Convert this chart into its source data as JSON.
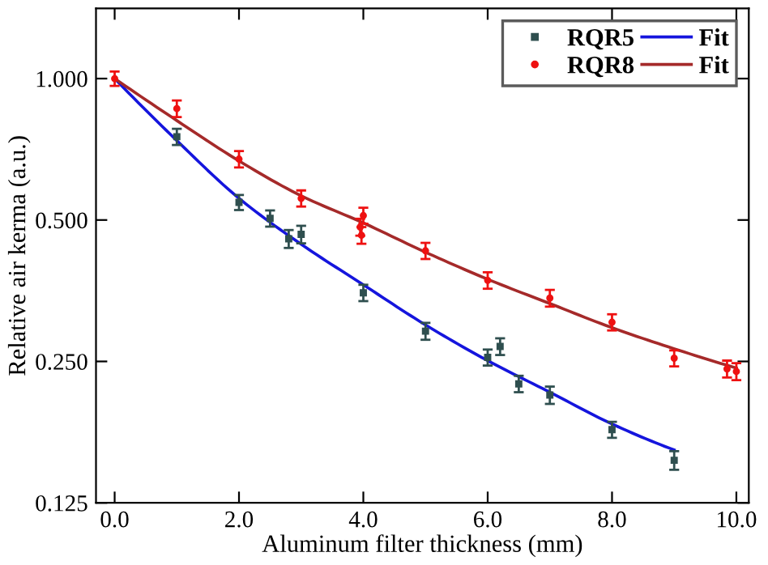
{
  "chart_data": {
    "type": "scatter",
    "xlabel": "Aluminum filter thickness (mm)",
    "ylabel": "Relative air kerma (a.u.)",
    "log": "y",
    "xlim": [
      -0.3,
      10.2
    ],
    "ylim": [
      0.125,
      1.41
    ],
    "xticks": [
      {
        "value": 0,
        "label": "0.0"
      },
      {
        "value": 2,
        "label": "2.0"
      },
      {
        "value": 4,
        "label": "4.0"
      },
      {
        "value": 6,
        "label": "6.0"
      },
      {
        "value": 8,
        "label": "8.0"
      },
      {
        "value": 10,
        "label": "10.0"
      }
    ],
    "yticks": [
      {
        "value": 0.125,
        "label": "0.125"
      },
      {
        "value": 0.25,
        "label": "0.250"
      },
      {
        "value": 0.5,
        "label": "0.500"
      },
      {
        "value": 1,
        "label": "1.000"
      }
    ],
    "grid": false,
    "legend": "top right",
    "series": [
      {
        "name": "RQR5",
        "marker": "square",
        "color": "#2f4f4f",
        "x": [
          1,
          2,
          2.5,
          2.8,
          3,
          4,
          5,
          6,
          6.2,
          6.5,
          7,
          8,
          9
        ],
        "values": [
          0.752,
          0.545,
          0.504,
          0.456,
          0.466,
          0.35,
          0.29,
          0.255,
          0.269,
          0.224,
          0.212,
          0.179,
          0.154
        ],
        "errors": [
          0.03,
          0.02,
          0.02,
          0.02,
          0.02,
          0.014,
          0.012,
          0.01,
          0.011,
          0.009,
          0.009,
          0.007,
          0.007
        ]
      },
      {
        "name": "RQR8",
        "marker": "circle",
        "color": "#ee1111",
        "x": [
          0,
          1,
          2,
          3,
          3.95,
          3.97,
          4,
          5,
          6,
          7,
          8,
          9,
          9.85,
          10
        ],
        "values": [
          1.0,
          0.863,
          0.674,
          0.556,
          0.483,
          0.464,
          0.511,
          0.43,
          0.372,
          0.341,
          0.303,
          0.254,
          0.241,
          0.238
        ],
        "errors": [
          0.035,
          0.035,
          0.027,
          0.022,
          0.02,
          0.019,
          0.02,
          0.017,
          0.015,
          0.014,
          0.012,
          0.01,
          0.01,
          0.01
        ]
      },
      {
        "name": "Fit",
        "type": "line",
        "marker": "none",
        "color": "#1515dd",
        "x": [
          0,
          1,
          2,
          3,
          4,
          5,
          6,
          7,
          8,
          9
        ],
        "values": [
          1.0,
          0.738,
          0.556,
          0.444,
          0.364,
          0.299,
          0.251,
          0.215,
          0.184,
          0.162
        ]
      },
      {
        "name": "Fit",
        "type": "line",
        "marker": "none",
        "color": "#a52a2a",
        "x": [
          0,
          1,
          2,
          3,
          4,
          5,
          6,
          7,
          8,
          9,
          10
        ],
        "values": [
          1.0,
          0.814,
          0.668,
          0.563,
          0.493,
          0.427,
          0.374,
          0.332,
          0.295,
          0.266,
          0.242
        ]
      }
    ]
  }
}
